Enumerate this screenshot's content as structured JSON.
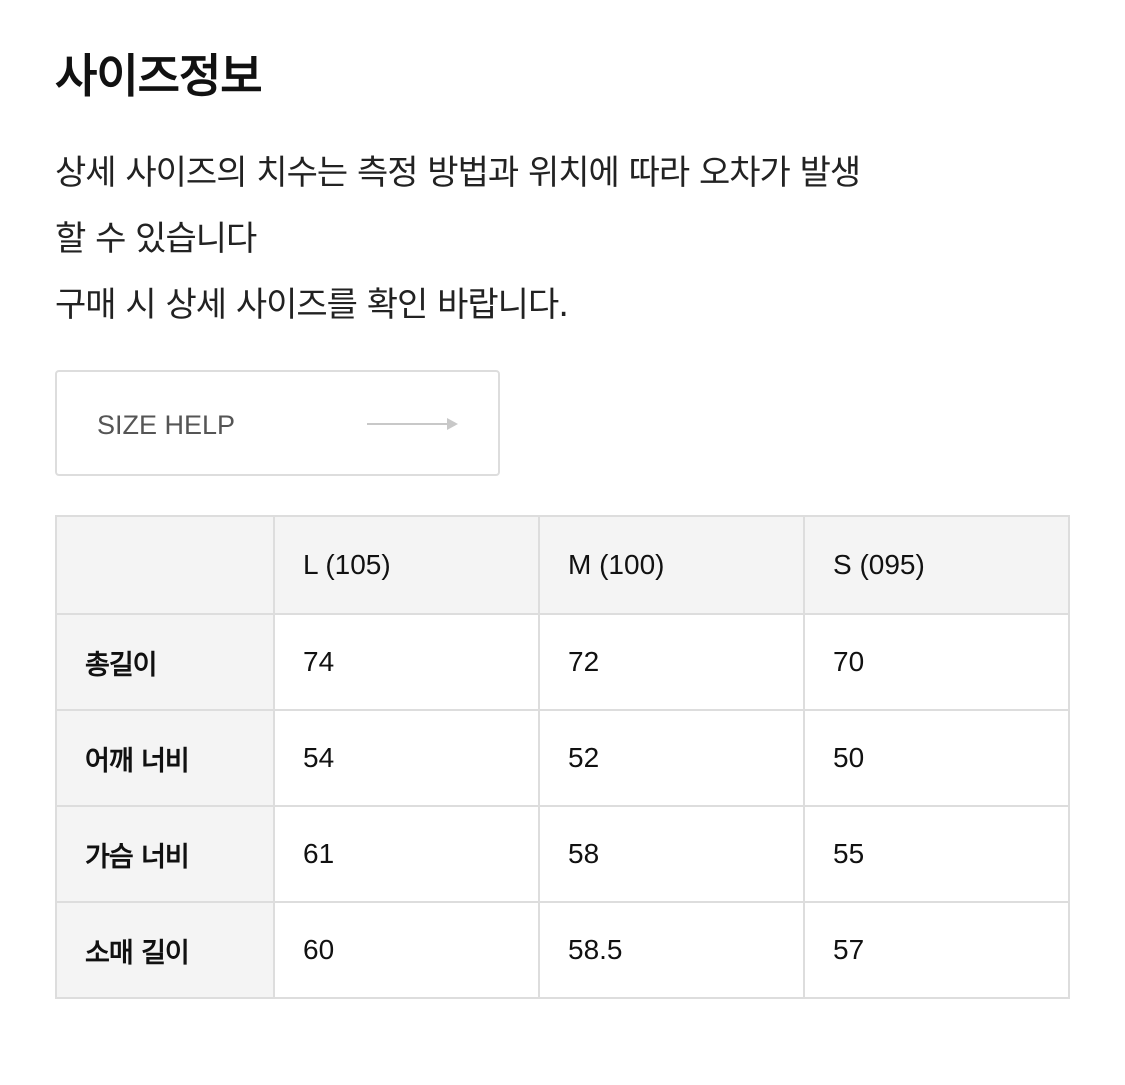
{
  "title": "사이즈정보",
  "description": [
    "상세 사이즈의 치수는 측정 방법과 위치에 따라 오차가 발생",
    "할 수 있습니다",
    "구매 시 상세 사이즈를 확인 바랍니다."
  ],
  "size_help": {
    "label": "SIZE HELP",
    "icon": "arrow-right-icon"
  },
  "table": {
    "columns": [
      "",
      "L (105)",
      "M (100)",
      "S (095)"
    ],
    "rows": [
      {
        "label": "총길이",
        "values": [
          "74",
          "72",
          "70"
        ]
      },
      {
        "label": "어깨 너비",
        "values": [
          "54",
          "52",
          "50"
        ]
      },
      {
        "label": "가슴 너비",
        "values": [
          "61",
          "58",
          "55"
        ]
      },
      {
        "label": "소매 길이",
        "values": [
          "60",
          "58.5",
          "57"
        ]
      }
    ]
  }
}
